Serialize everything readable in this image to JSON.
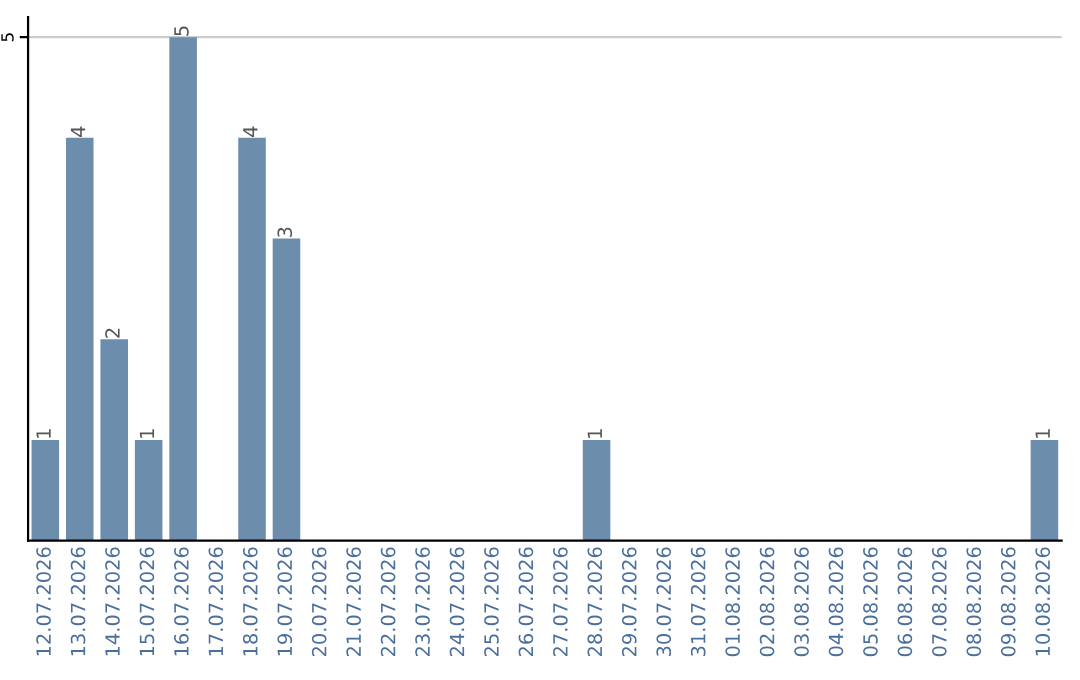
{
  "chart_data": {
    "type": "bar",
    "categories": [
      "12.07.2026",
      "13.07.2026",
      "14.07.2026",
      "15.07.2026",
      "16.07.2026",
      "17.07.2026",
      "18.07.2026",
      "19.07.2026",
      "20.07.2026",
      "21.07.2026",
      "22.07.2026",
      "23.07.2026",
      "24.07.2026",
      "25.07.2026",
      "26.07.2026",
      "27.07.2026",
      "28.07.2026",
      "29.07.2026",
      "30.07.2026",
      "31.07.2026",
      "01.08.2026",
      "02.08.2026",
      "03.08.2026",
      "04.08.2026",
      "05.08.2026",
      "06.08.2026",
      "07.08.2026",
      "08.08.2026",
      "09.08.2026",
      "10.08.2026"
    ],
    "values": [
      1,
      4,
      2,
      1,
      5,
      0,
      4,
      3,
      0,
      0,
      0,
      0,
      0,
      0,
      0,
      0,
      1,
      0,
      0,
      0,
      0,
      0,
      0,
      0,
      0,
      0,
      0,
      0,
      0,
      1
    ],
    "value_labels": [
      "1",
      "4",
      "2",
      "1",
      "5",
      null,
      "4",
      "3",
      null,
      null,
      null,
      null,
      null,
      null,
      null,
      null,
      "1",
      null,
      null,
      null,
      null,
      null,
      null,
      null,
      null,
      null,
      null,
      null,
      null,
      "1"
    ],
    "color": "#6d8dac",
    "ylim": [
      0,
      5.2
    ],
    "yticks": [
      5
    ],
    "grid": "y"
  }
}
